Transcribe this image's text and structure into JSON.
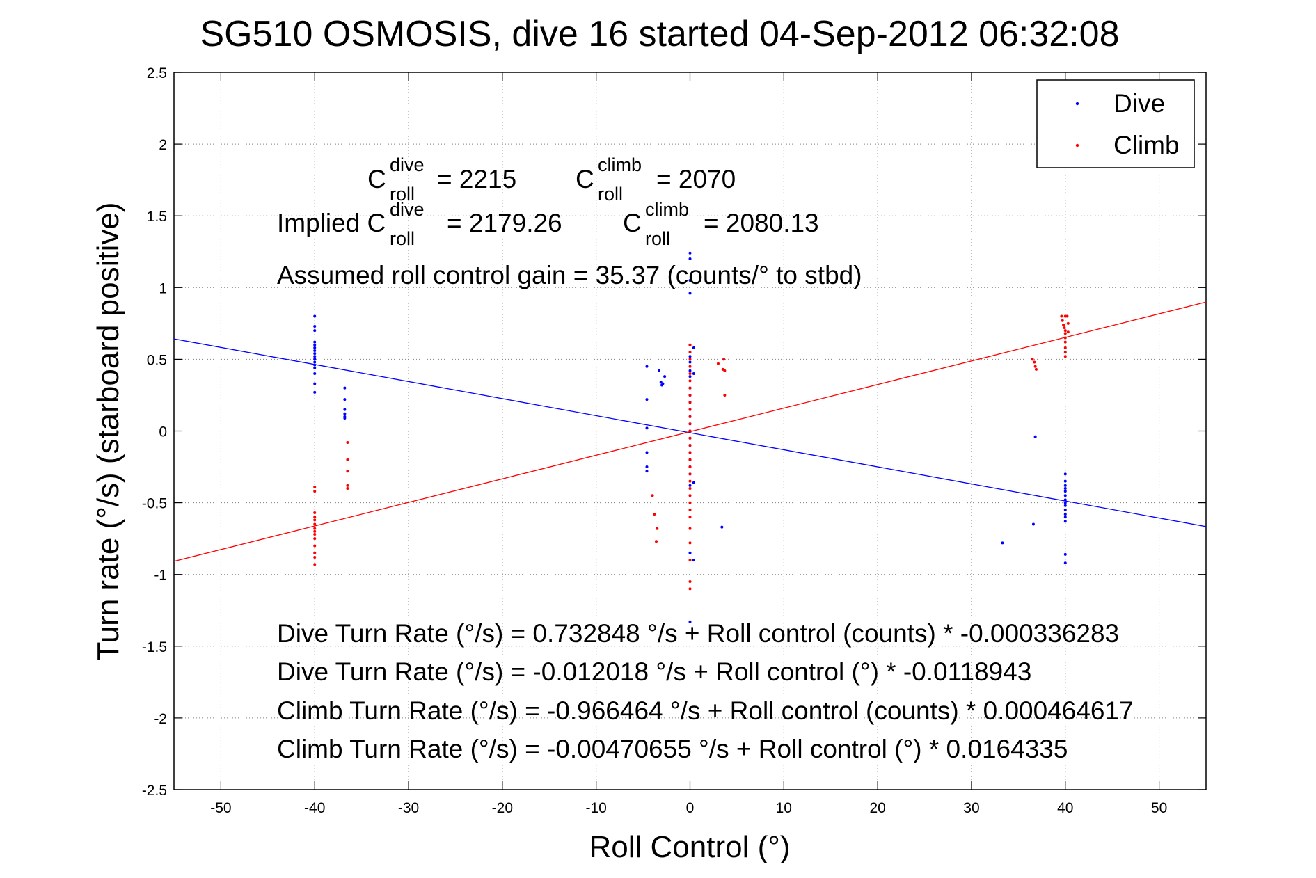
{
  "chart_data": {
    "type": "scatter",
    "title": "SG510 OSMOSIS, dive 16 started 04-Sep-2012 06:32:08",
    "xlabel": "Roll Control (°)",
    "ylabel": "Turn rate (°/s)  (starboard positive)",
    "xlim": [
      -55,
      55
    ],
    "ylim": [
      -2.5,
      2.5
    ],
    "xticks": [
      -50,
      -40,
      -30,
      -20,
      -10,
      0,
      10,
      20,
      30,
      40,
      50
    ],
    "yticks": [
      -2.5,
      -2,
      -1.5,
      -1,
      -0.5,
      0,
      0.5,
      1,
      1.5,
      2,
      2.5
    ],
    "xtick_labels": [
      "-50",
      "-40",
      "-30",
      "-20",
      "-10",
      "0",
      "10",
      "20",
      "30",
      "40",
      "50"
    ],
    "ytick_labels": [
      "-2.5",
      "-2",
      "-1.5",
      "-1",
      "-0.5",
      "0",
      "0.5",
      "1",
      "1.5",
      "2",
      "2.5"
    ],
    "grid": true,
    "legend_position": "top-right",
    "series": [
      {
        "name": "Dive",
        "color": "#0000ff",
        "marker": "dot",
        "points": [
          [
            -40,
            0.8
          ],
          [
            -40,
            0.73
          ],
          [
            -40,
            0.7
          ],
          [
            -40,
            0.62
          ],
          [
            -40,
            0.6
          ],
          [
            -40,
            0.58
          ],
          [
            -40,
            0.56
          ],
          [
            -40,
            0.54
          ],
          [
            -40,
            0.52
          ],
          [
            -40,
            0.5
          ],
          [
            -40,
            0.48
          ],
          [
            -40,
            0.46
          ],
          [
            -40,
            0.44
          ],
          [
            -40,
            0.4
          ],
          [
            -40,
            0.33
          ],
          [
            -40,
            0.27
          ],
          [
            -36.8,
            0.3
          ],
          [
            -36.8,
            0.22
          ],
          [
            -36.8,
            0.15
          ],
          [
            -36.8,
            0.12
          ],
          [
            -36.8,
            0.1
          ],
          [
            -36.8,
            0.09
          ],
          [
            -4.6,
            0.45
          ],
          [
            -4.6,
            0.22
          ],
          [
            -4.6,
            0.02
          ],
          [
            -4.6,
            -0.15
          ],
          [
            -4.6,
            -0.25
          ],
          [
            -4.6,
            -0.28
          ],
          [
            -3.3,
            0.42
          ],
          [
            -3.1,
            0.34
          ],
          [
            -2.9,
            0.33
          ],
          [
            -2.7,
            0.38
          ],
          [
            -3.0,
            0.32
          ],
          [
            0,
            1.24
          ],
          [
            0,
            1.2
          ],
          [
            0,
            1.05
          ],
          [
            0,
            0.96
          ],
          [
            0,
            0.6
          ],
          [
            0,
            0.52
          ],
          [
            0,
            0.48
          ],
          [
            0,
            0.42
          ],
          [
            0,
            0.38
          ],
          [
            0,
            0.3
          ],
          [
            0,
            0.25
          ],
          [
            0,
            0.2
          ],
          [
            0,
            0.15
          ],
          [
            0,
            0.1
          ],
          [
            0,
            0.05
          ],
          [
            0,
            0.0
          ],
          [
            0,
            -0.05
          ],
          [
            0,
            -0.1
          ],
          [
            0,
            -0.15
          ],
          [
            0,
            -0.2
          ],
          [
            0,
            -0.25
          ],
          [
            0,
            -0.3
          ],
          [
            0,
            -0.38
          ],
          [
            0,
            -0.85
          ],
          [
            0,
            -1.33
          ],
          [
            0.4,
            0.58
          ],
          [
            0.4,
            0.4
          ],
          [
            0.4,
            -0.36
          ],
          [
            0.4,
            -0.9
          ],
          [
            3.4,
            -0.67
          ],
          [
            33.3,
            -0.78
          ],
          [
            36.6,
            -0.65
          ],
          [
            36.8,
            -0.04
          ],
          [
            40,
            -0.3
          ],
          [
            40,
            -0.35
          ],
          [
            40,
            -0.38
          ],
          [
            40,
            -0.4
          ],
          [
            40,
            -0.42
          ],
          [
            40,
            -0.45
          ],
          [
            40,
            -0.48
          ],
          [
            40,
            -0.5
          ],
          [
            40,
            -0.52
          ],
          [
            40,
            -0.55
          ],
          [
            40,
            -0.58
          ],
          [
            40,
            -0.6
          ],
          [
            40,
            -0.63
          ],
          [
            40,
            -0.86
          ],
          [
            40,
            -0.92
          ]
        ]
      },
      {
        "name": "Climb",
        "color": "#ff0000",
        "marker": "dot",
        "points": [
          [
            -40,
            -0.39
          ],
          [
            -40,
            -0.42
          ],
          [
            -40,
            -0.57
          ],
          [
            -40,
            -0.6
          ],
          [
            -40,
            -0.62
          ],
          [
            -40,
            -0.65
          ],
          [
            -40,
            -0.68
          ],
          [
            -40,
            -0.7
          ],
          [
            -40,
            -0.72
          ],
          [
            -40,
            -0.75
          ],
          [
            -40,
            -0.8
          ],
          [
            -40,
            -0.85
          ],
          [
            -40,
            -0.88
          ],
          [
            -40,
            -0.93
          ],
          [
            -36.5,
            -0.08
          ],
          [
            -36.5,
            -0.2
          ],
          [
            -36.5,
            -0.28
          ],
          [
            -36.5,
            -0.38
          ],
          [
            -36.5,
            -0.4
          ],
          [
            -4.0,
            -0.45
          ],
          [
            -3.8,
            -0.58
          ],
          [
            -3.5,
            -0.68
          ],
          [
            -3.6,
            -0.77
          ],
          [
            0,
            0.6
          ],
          [
            0,
            0.55
          ],
          [
            0,
            0.5
          ],
          [
            0,
            0.45
          ],
          [
            0,
            0.4
          ],
          [
            0,
            0.35
          ],
          [
            0,
            0.3
          ],
          [
            0,
            0.25
          ],
          [
            0,
            0.2
          ],
          [
            0,
            0.15
          ],
          [
            0,
            0.1
          ],
          [
            0,
            0.05
          ],
          [
            0,
            0.0
          ],
          [
            0,
            -0.05
          ],
          [
            0,
            -0.1
          ],
          [
            0,
            -0.15
          ],
          [
            0,
            -0.2
          ],
          [
            0,
            -0.25
          ],
          [
            0,
            -0.3
          ],
          [
            0,
            -0.35
          ],
          [
            0,
            -0.4
          ],
          [
            0,
            -0.45
          ],
          [
            0,
            -0.5
          ],
          [
            0,
            -0.55
          ],
          [
            0,
            -0.6
          ],
          [
            0,
            -0.68
          ],
          [
            0,
            -0.78
          ],
          [
            0,
            -0.9
          ],
          [
            0,
            -1.05
          ],
          [
            0,
            -1.1
          ],
          [
            3.0,
            0.47
          ],
          [
            3.5,
            0.43
          ],
          [
            3.6,
            0.5
          ],
          [
            3.7,
            0.42
          ],
          [
            3.7,
            0.25
          ],
          [
            36.5,
            0.5
          ],
          [
            36.7,
            0.48
          ],
          [
            36.8,
            0.45
          ],
          [
            36.9,
            0.43
          ],
          [
            39.6,
            0.8
          ],
          [
            39.7,
            0.77
          ],
          [
            39.8,
            0.74
          ],
          [
            39.9,
            0.72
          ],
          [
            40.0,
            0.8
          ],
          [
            40.0,
            0.7
          ],
          [
            40.0,
            0.68
          ],
          [
            40.0,
            0.65
          ],
          [
            40.0,
            0.62
          ],
          [
            40.0,
            0.58
          ],
          [
            40.0,
            0.55
          ],
          [
            40.0,
            0.52
          ],
          [
            40.2,
            0.8
          ],
          [
            40.3,
            0.75
          ],
          [
            40.3,
            0.69
          ]
        ]
      }
    ],
    "fit_lines": [
      {
        "series": "Dive",
        "color": "#0000ff",
        "intercept": -0.012018,
        "slope": -0.0118943
      },
      {
        "series": "Climb",
        "color": "#ff0000",
        "intercept": -0.00470655,
        "slope": 0.0164335
      }
    ]
  },
  "annotations": {
    "c": "C",
    "roll": "roll",
    "dive": "dive",
    "climb": "climb",
    "croll_dive_val": "= 2215",
    "croll_climb_val": "= 2070",
    "implied_prefix": "Implied C",
    "implied_dive_val": "= 2179.26",
    "implied_climb_val": "= 2080.13",
    "gain": "Assumed roll control gain = 35.37 (counts/° to stbd)",
    "eq1": "Dive Turn Rate (°/s) = 0.732848 °/s + Roll control (counts) * -0.000336283",
    "eq2": "Dive Turn Rate (°/s) = -0.012018 °/s + Roll control (°) * -0.0118943",
    "eq3": "Climb Turn Rate (°/s) = -0.966464 °/s + Roll control (counts) * 0.000464617",
    "eq4": "Climb Turn Rate (°/s) = -0.00470655 °/s + Roll control (°) * 0.0164335"
  }
}
